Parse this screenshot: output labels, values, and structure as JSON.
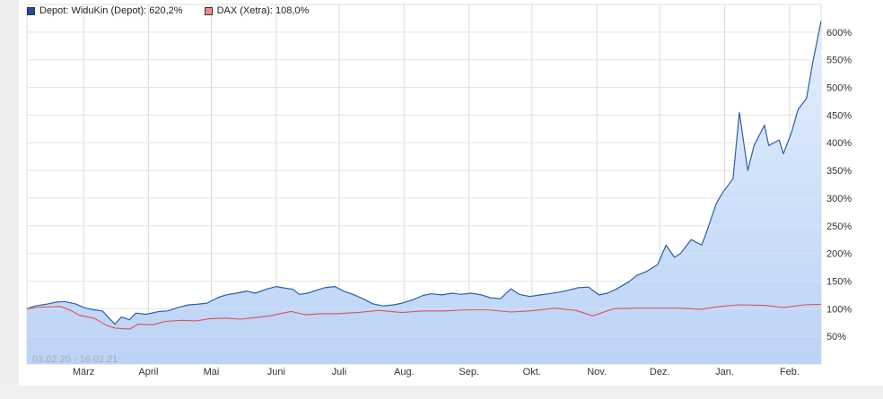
{
  "legend": {
    "depot": "Depot: WiduKin (Depot): 620,2%",
    "dax": "DAX (Xetra): 108,0%"
  },
  "date_range": "03.02.20 - 16.02.21",
  "colors": {
    "depot_line": "#2a5fad",
    "depot_fill_top": "#e3eefc",
    "depot_fill_bottom": "#bcd3f6",
    "dax_line": "#e05050",
    "dax_swatch": "#f08a8a",
    "depot_swatch": "#1d4f9c",
    "grid": "#dcdcdc"
  },
  "chart_data": {
    "type": "line",
    "title": "",
    "xlabel": "",
    "ylabel": "",
    "x_ticks": [
      "März",
      "April",
      "Mai",
      "Juni",
      "Juli",
      "Aug.",
      "Sep.",
      "Okt.",
      "Nov.",
      "Dez.",
      "Jan.",
      "Feb."
    ],
    "y_ticks": [
      "50%",
      "100%",
      "150%",
      "200%",
      "250%",
      "300%",
      "350%",
      "400%",
      "450%",
      "500%",
      "550%",
      "600%"
    ],
    "y_tick_values": [
      50,
      100,
      150,
      200,
      250,
      300,
      350,
      400,
      450,
      500,
      550,
      600
    ],
    "ylim": [
      0,
      650
    ],
    "x_range": [
      "2020-02-03",
      "2021-02-16"
    ],
    "grid": true,
    "legend_position": "top-left",
    "series": [
      {
        "name": "Depot: WiduKin (Depot): 620,2%",
        "points": [
          [
            "2020-02-03",
            100
          ],
          [
            "2020-02-07",
            105
          ],
          [
            "2020-02-12",
            108
          ],
          [
            "2020-02-17",
            112
          ],
          [
            "2020-02-21",
            113
          ],
          [
            "2020-02-26",
            109
          ],
          [
            "2020-03-02",
            101
          ],
          [
            "2020-03-06",
            98
          ],
          [
            "2020-03-10",
            96
          ],
          [
            "2020-03-12",
            88
          ],
          [
            "2020-03-16",
            72
          ],
          [
            "2020-03-19",
            85
          ],
          [
            "2020-03-23",
            80
          ],
          [
            "2020-03-26",
            92
          ],
          [
            "2020-03-31",
            90
          ],
          [
            "2020-04-06",
            95
          ],
          [
            "2020-04-10",
            96
          ],
          [
            "2020-04-15",
            102
          ],
          [
            "2020-04-20",
            107
          ],
          [
            "2020-04-24",
            108
          ],
          [
            "2020-04-29",
            110
          ],
          [
            "2020-05-04",
            120
          ],
          [
            "2020-05-08",
            125
          ],
          [
            "2020-05-13",
            128
          ],
          [
            "2020-05-18",
            132
          ],
          [
            "2020-05-22",
            128
          ],
          [
            "2020-05-27",
            135
          ],
          [
            "2020-06-01",
            140
          ],
          [
            "2020-06-04",
            138
          ],
          [
            "2020-06-09",
            135
          ],
          [
            "2020-06-12",
            126
          ],
          [
            "2020-06-16",
            128
          ],
          [
            "2020-06-19",
            132
          ],
          [
            "2020-06-24",
            138
          ],
          [
            "2020-06-29",
            140
          ],
          [
            "2020-07-03",
            132
          ],
          [
            "2020-07-07",
            127
          ],
          [
            "2020-07-13",
            117
          ],
          [
            "2020-07-17",
            109
          ],
          [
            "2020-07-22",
            105
          ],
          [
            "2020-07-27",
            107
          ],
          [
            "2020-07-31",
            110
          ],
          [
            "2020-08-05",
            116
          ],
          [
            "2020-08-10",
            124
          ],
          [
            "2020-08-14",
            127
          ],
          [
            "2020-08-19",
            125
          ],
          [
            "2020-08-24",
            128
          ],
          [
            "2020-08-28",
            126
          ],
          [
            "2020-09-02",
            128
          ],
          [
            "2020-09-07",
            125
          ],
          [
            "2020-09-11",
            120
          ],
          [
            "2020-09-16",
            118
          ],
          [
            "2020-09-21",
            136
          ],
          [
            "2020-09-25",
            126
          ],
          [
            "2020-09-30",
            122
          ],
          [
            "2020-10-05",
            125
          ],
          [
            "2020-10-09",
            127
          ],
          [
            "2020-10-14",
            130
          ],
          [
            "2020-10-19",
            134
          ],
          [
            "2020-10-23",
            138
          ],
          [
            "2020-10-28",
            139
          ],
          [
            "2020-11-02",
            125
          ],
          [
            "2020-11-06",
            128
          ],
          [
            "2020-11-10",
            135
          ],
          [
            "2020-11-16",
            148
          ],
          [
            "2020-11-20",
            160
          ],
          [
            "2020-11-25",
            168
          ],
          [
            "2020-11-30",
            180
          ],
          [
            "2020-12-04",
            215
          ],
          [
            "2020-12-08",
            193
          ],
          [
            "2020-12-11",
            200
          ],
          [
            "2020-12-16",
            225
          ],
          [
            "2020-12-21",
            215
          ],
          [
            "2020-12-23",
            235
          ],
          [
            "2020-12-28",
            290
          ],
          [
            "2020-12-31",
            310
          ],
          [
            "2021-01-05",
            335
          ],
          [
            "2021-01-08",
            455
          ],
          [
            "2021-01-12",
            350
          ],
          [
            "2021-01-15",
            395
          ],
          [
            "2021-01-20",
            432
          ],
          [
            "2021-01-22",
            395
          ],
          [
            "2021-01-27",
            405
          ],
          [
            "2021-01-29",
            380
          ],
          [
            "2021-02-02",
            420
          ],
          [
            "2021-02-05",
            460
          ],
          [
            "2021-02-09",
            480
          ],
          [
            "2021-02-12",
            545
          ],
          [
            "2021-02-16",
            620
          ]
        ]
      },
      {
        "name": "DAX (Xetra): 108,0%",
        "points": [
          [
            "2020-02-03",
            100
          ],
          [
            "2020-02-10",
            103
          ],
          [
            "2020-02-19",
            104
          ],
          [
            "2020-02-24",
            97
          ],
          [
            "2020-02-28",
            88
          ],
          [
            "2020-03-06",
            83
          ],
          [
            "2020-03-12",
            70
          ],
          [
            "2020-03-16",
            65
          ],
          [
            "2020-03-23",
            63
          ],
          [
            "2020-03-27",
            72
          ],
          [
            "2020-04-03",
            71
          ],
          [
            "2020-04-09",
            77
          ],
          [
            "2020-04-17",
            79
          ],
          [
            "2020-04-24",
            78
          ],
          [
            "2020-04-30",
            82
          ],
          [
            "2020-05-08",
            83
          ],
          [
            "2020-05-15",
            81
          ],
          [
            "2020-05-22",
            84
          ],
          [
            "2020-05-29",
            87
          ],
          [
            "2020-06-08",
            95
          ],
          [
            "2020-06-15",
            89
          ],
          [
            "2020-06-22",
            91
          ],
          [
            "2020-06-30",
            91
          ],
          [
            "2020-07-10",
            93
          ],
          [
            "2020-07-20",
            97
          ],
          [
            "2020-07-31",
            93
          ],
          [
            "2020-08-10",
            96
          ],
          [
            "2020-08-20",
            96
          ],
          [
            "2020-08-31",
            98
          ],
          [
            "2020-09-10",
            98
          ],
          [
            "2020-09-21",
            94
          ],
          [
            "2020-09-30",
            96
          ],
          [
            "2020-10-12",
            101
          ],
          [
            "2020-10-22",
            97
          ],
          [
            "2020-10-30",
            87
          ],
          [
            "2020-11-09",
            100
          ],
          [
            "2020-11-20",
            101
          ],
          [
            "2020-11-30",
            101
          ],
          [
            "2020-12-10",
            101
          ],
          [
            "2020-12-21",
            99
          ],
          [
            "2020-12-30",
            104
          ],
          [
            "2021-01-08",
            107
          ],
          [
            "2021-01-20",
            106
          ],
          [
            "2021-01-29",
            102
          ],
          [
            "2021-02-08",
            107
          ],
          [
            "2021-02-16",
            108
          ]
        ]
      }
    ]
  }
}
